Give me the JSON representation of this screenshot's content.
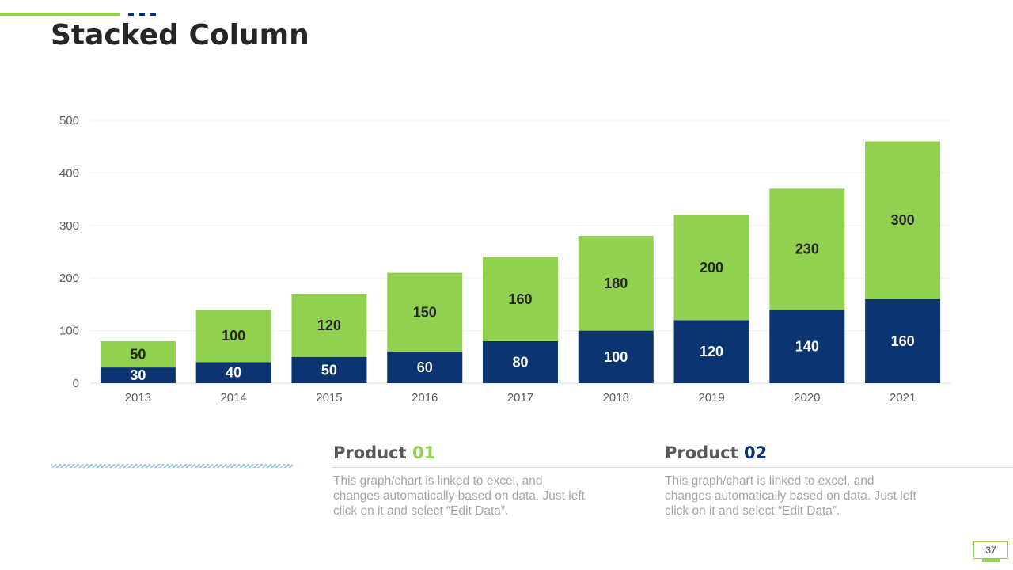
{
  "slide": {
    "title": "Stacked Column",
    "page_number": "37"
  },
  "colors": {
    "accent_green": "#92d050",
    "accent_navy": "#0b3470"
  },
  "products": [
    {
      "name": "Product ",
      "number": "01",
      "description": "This graph/chart is linked to excel, and changes automatically based on data. Just left click on it and select “Edit Data”."
    },
    {
      "name": "Product ",
      "number": "02",
      "description": "This graph/chart is linked to excel, and changes automatically based on data. Just left click on it and select “Edit Data”."
    }
  ],
  "chart_data": {
    "type": "bar",
    "stacked": true,
    "categories": [
      "2013",
      "2014",
      "2015",
      "2016",
      "2017",
      "2018",
      "2019",
      "2020",
      "2021"
    ],
    "series": [
      {
        "values": [
          30,
          40,
          50,
          60,
          80,
          100,
          120,
          140,
          160
        ],
        "color": "#0b3470",
        "label_color": "#ffffff"
      },
      {
        "values": [
          50,
          100,
          120,
          150,
          160,
          180,
          200,
          230,
          300
        ],
        "color": "#92d050",
        "label_color": "#262626"
      }
    ],
    "ylim": [
      0,
      500
    ],
    "yticks": [
      0,
      100,
      200,
      300,
      400,
      500
    ],
    "grid": true,
    "legend": "none"
  }
}
